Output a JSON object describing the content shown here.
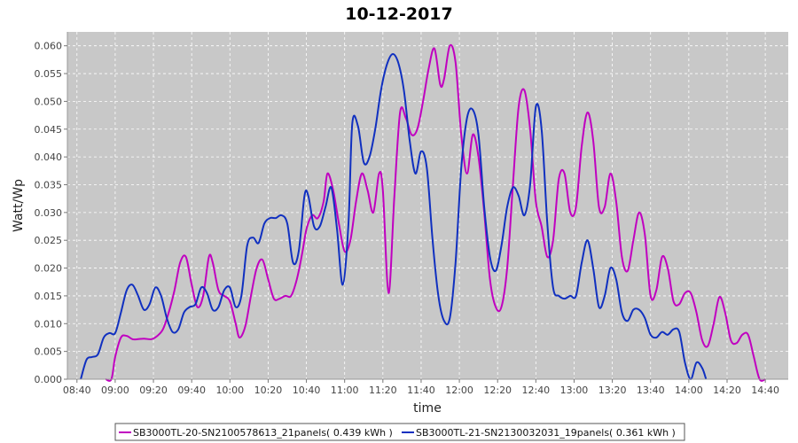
{
  "chart_data": {
    "type": "line",
    "title": "10-12-2017",
    "xlabel": "time",
    "ylabel": "Watt/Wp",
    "x_ticks": [
      "08:40",
      "09:00",
      "09:20",
      "09:40",
      "10:00",
      "10:20",
      "10:40",
      "11:00",
      "11:20",
      "11:40",
      "12:00",
      "12:20",
      "12:40",
      "13:00",
      "13:20",
      "13:40",
      "14:00",
      "14:20",
      "14:40"
    ],
    "y_ticks": [
      "0.000",
      "0.005",
      "0.010",
      "0.015",
      "0.020",
      "0.025",
      "0.030",
      "0.035",
      "0.040",
      "0.045",
      "0.050",
      "0.055",
      "0.060"
    ],
    "xlim": [
      "08:35",
      "14:52"
    ],
    "ylim": [
      0,
      0.0625
    ],
    "grid": true,
    "legend_position": "bottom",
    "series": [
      {
        "name": "SB3000TL-20-SN2100578613_21panels( 0.439 kWh )",
        "color": "#c000c0",
        "points": [
          [
            "08:55",
            0.0
          ],
          [
            "08:58",
            0.0
          ],
          [
            "09:00",
            0.004
          ],
          [
            "09:03",
            0.0075
          ],
          [
            "09:06",
            0.0078
          ],
          [
            "09:09",
            0.0072
          ],
          [
            "09:12",
            0.0072
          ],
          [
            "09:15",
            0.0073
          ],
          [
            "09:19",
            0.0072
          ],
          [
            "09:22",
            0.0078
          ],
          [
            "09:25",
            0.009
          ],
          [
            "09:28",
            0.012
          ],
          [
            "09:31",
            0.016
          ],
          [
            "09:34",
            0.021
          ],
          [
            "09:37",
            0.022
          ],
          [
            "09:40",
            0.017
          ],
          [
            "09:43",
            0.013
          ],
          [
            "09:46",
            0.015
          ],
          [
            "09:49",
            0.022
          ],
          [
            "09:51",
            0.021
          ],
          [
            "09:54",
            0.016
          ],
          [
            "09:57",
            0.015
          ],
          [
            "10:00",
            0.014
          ],
          [
            "10:03",
            0.01
          ],
          [
            "10:05",
            0.0075
          ],
          [
            "10:08",
            0.0095
          ],
          [
            "10:11",
            0.015
          ],
          [
            "10:14",
            0.02
          ],
          [
            "10:17",
            0.0215
          ],
          [
            "10:20",
            0.018
          ],
          [
            "10:23",
            0.0145
          ],
          [
            "10:26",
            0.0145
          ],
          [
            "10:29",
            0.015
          ],
          [
            "10:32",
            0.015
          ],
          [
            "10:35",
            0.018
          ],
          [
            "10:38",
            0.023
          ],
          [
            "10:40",
            0.027
          ],
          [
            "10:43",
            0.0295
          ],
          [
            "10:46",
            0.029
          ],
          [
            "10:49",
            0.032
          ],
          [
            "10:51",
            0.037
          ],
          [
            "10:54",
            0.034
          ],
          [
            "10:57",
            0.028
          ],
          [
            "11:00",
            0.023
          ],
          [
            "11:03",
            0.025
          ],
          [
            "11:06",
            0.032
          ],
          [
            "11:09",
            0.037
          ],
          [
            "11:12",
            0.034
          ],
          [
            "11:15",
            0.03
          ],
          [
            "11:18",
            0.037
          ],
          [
            "11:20",
            0.034
          ],
          [
            "11:23",
            0.0155
          ],
          [
            "11:26",
            0.033
          ],
          [
            "11:29",
            0.048
          ],
          [
            "11:32",
            0.047
          ],
          [
            "11:35",
            0.044
          ],
          [
            "11:38",
            0.045
          ],
          [
            "11:41",
            0.05
          ],
          [
            "11:44",
            0.056
          ],
          [
            "11:47",
            0.0595
          ],
          [
            "11:50",
            0.053
          ],
          [
            "11:52",
            0.054
          ],
          [
            "11:55",
            0.06
          ],
          [
            "11:58",
            0.057
          ],
          [
            "12:01",
            0.044
          ],
          [
            "12:04",
            0.037
          ],
          [
            "12:07",
            0.044
          ],
          [
            "12:10",
            0.04
          ],
          [
            "12:13",
            0.03
          ],
          [
            "12:16",
            0.018
          ],
          [
            "12:19",
            0.013
          ],
          [
            "12:22",
            0.013
          ],
          [
            "12:25",
            0.02
          ],
          [
            "12:28",
            0.035
          ],
          [
            "12:31",
            0.049
          ],
          [
            "12:34",
            0.052
          ],
          [
            "12:37",
            0.045
          ],
          [
            "12:40",
            0.032
          ],
          [
            "12:43",
            0.0275
          ],
          [
            "12:46",
            0.022
          ],
          [
            "12:49",
            0.025
          ],
          [
            "12:52",
            0.036
          ],
          [
            "12:55",
            0.037
          ],
          [
            "12:58",
            0.03
          ],
          [
            "13:01",
            0.031
          ],
          [
            "13:04",
            0.042
          ],
          [
            "13:07",
            0.048
          ],
          [
            "13:10",
            0.043
          ],
          [
            "13:13",
            0.031
          ],
          [
            "13:16",
            0.031
          ],
          [
            "13:19",
            0.037
          ],
          [
            "13:22",
            0.032
          ],
          [
            "13:25",
            0.022
          ],
          [
            "13:28",
            0.0195
          ],
          [
            "13:31",
            0.025
          ],
          [
            "13:34",
            0.03
          ],
          [
            "13:37",
            0.026
          ],
          [
            "13:40",
            0.015
          ],
          [
            "13:43",
            0.016
          ],
          [
            "13:46",
            0.022
          ],
          [
            "13:49",
            0.02
          ],
          [
            "13:52",
            0.014
          ],
          [
            "13:55",
            0.0135
          ],
          [
            "13:58",
            0.0155
          ],
          [
            "14:01",
            0.0155
          ],
          [
            "14:04",
            0.012
          ],
          [
            "14:07",
            0.007
          ],
          [
            "14:10",
            0.006
          ],
          [
            "14:13",
            0.01
          ],
          [
            "14:16",
            0.0148
          ],
          [
            "14:19",
            0.012
          ],
          [
            "14:22",
            0.007
          ],
          [
            "14:25",
            0.0065
          ],
          [
            "14:28",
            0.008
          ],
          [
            "14:31",
            0.008
          ],
          [
            "14:34",
            0.004
          ],
          [
            "14:37",
            0.0
          ],
          [
            "14:40",
            0.0
          ]
        ]
      },
      {
        "name": "SB3000TL-21-SN2130032031_19panels( 0.361 kWh )",
        "color": "#1030c0",
        "points": [
          [
            "08:42",
            0.0
          ],
          [
            "08:45",
            0.0035
          ],
          [
            "08:48",
            0.004
          ],
          [
            "08:51",
            0.0045
          ],
          [
            "08:54",
            0.0075
          ],
          [
            "08:57",
            0.0083
          ],
          [
            "09:00",
            0.0083
          ],
          [
            "09:03",
            0.012
          ],
          [
            "09:06",
            0.016
          ],
          [
            "09:09",
            0.017
          ],
          [
            "09:12",
            0.015
          ],
          [
            "09:15",
            0.0125
          ],
          [
            "09:18",
            0.0135
          ],
          [
            "09:21",
            0.0165
          ],
          [
            "09:24",
            0.015
          ],
          [
            "09:27",
            0.011
          ],
          [
            "09:30",
            0.0085
          ],
          [
            "09:33",
            0.009
          ],
          [
            "09:36",
            0.012
          ],
          [
            "09:39",
            0.013
          ],
          [
            "09:42",
            0.0135
          ],
          [
            "09:45",
            0.0165
          ],
          [
            "09:48",
            0.0155
          ],
          [
            "09:51",
            0.0125
          ],
          [
            "09:54",
            0.013
          ],
          [
            "09:57",
            0.016
          ],
          [
            "10:00",
            0.0165
          ],
          [
            "10:03",
            0.013
          ],
          [
            "10:06",
            0.015
          ],
          [
            "10:09",
            0.024
          ],
          [
            "10:12",
            0.0255
          ],
          [
            "10:15",
            0.0245
          ],
          [
            "10:18",
            0.028
          ],
          [
            "10:21",
            0.029
          ],
          [
            "10:24",
            0.029
          ],
          [
            "10:27",
            0.0295
          ],
          [
            "10:30",
            0.028
          ],
          [
            "10:33",
            0.021
          ],
          [
            "10:36",
            0.023
          ],
          [
            "10:39",
            0.033
          ],
          [
            "10:41",
            0.033
          ],
          [
            "10:44",
            0.0275
          ],
          [
            "10:47",
            0.0275
          ],
          [
            "10:50",
            0.031
          ],
          [
            "10:53",
            0.0345
          ],
          [
            "10:56",
            0.027
          ],
          [
            "10:59",
            0.017
          ],
          [
            "11:02",
            0.028
          ],
          [
            "11:04",
            0.046
          ],
          [
            "11:07",
            0.0455
          ],
          [
            "11:10",
            0.039
          ],
          [
            "11:13",
            0.04
          ],
          [
            "11:16",
            0.045
          ],
          [
            "11:19",
            0.052
          ],
          [
            "11:22",
            0.0565
          ],
          [
            "11:25",
            0.0585
          ],
          [
            "11:28",
            0.057
          ],
          [
            "11:31",
            0.052
          ],
          [
            "11:34",
            0.043
          ],
          [
            "11:37",
            0.037
          ],
          [
            "11:40",
            0.041
          ],
          [
            "11:43",
            0.038
          ],
          [
            "11:46",
            0.025
          ],
          [
            "11:49",
            0.015
          ],
          [
            "11:52",
            0.0105
          ],
          [
            "11:55",
            0.011
          ],
          [
            "11:58",
            0.021
          ],
          [
            "12:01",
            0.038
          ],
          [
            "12:04",
            0.047
          ],
          [
            "12:07",
            0.0485
          ],
          [
            "12:10",
            0.044
          ],
          [
            "12:13",
            0.031
          ],
          [
            "12:16",
            0.022
          ],
          [
            "12:19",
            0.0195
          ],
          [
            "12:22",
            0.024
          ],
          [
            "12:25",
            0.031
          ],
          [
            "12:28",
            0.0345
          ],
          [
            "12:31",
            0.033
          ],
          [
            "12:34",
            0.0295
          ],
          [
            "12:37",
            0.035
          ],
          [
            "12:40",
            0.049
          ],
          [
            "12:43",
            0.045
          ],
          [
            "12:46",
            0.028
          ],
          [
            "12:49",
            0.0165
          ],
          [
            "12:52",
            0.015
          ],
          [
            "12:55",
            0.0145
          ],
          [
            "12:58",
            0.015
          ],
          [
            "13:01",
            0.015
          ],
          [
            "13:04",
            0.021
          ],
          [
            "13:07",
            0.025
          ],
          [
            "13:10",
            0.02
          ],
          [
            "13:13",
            0.013
          ],
          [
            "13:16",
            0.015
          ],
          [
            "13:19",
            0.02
          ],
          [
            "13:22",
            0.018
          ],
          [
            "13:25",
            0.012
          ],
          [
            "13:28",
            0.0105
          ],
          [
            "13:31",
            0.0125
          ],
          [
            "13:34",
            0.0125
          ],
          [
            "13:37",
            0.011
          ],
          [
            "13:40",
            0.008
          ],
          [
            "13:43",
            0.0075
          ],
          [
            "13:46",
            0.0085
          ],
          [
            "13:49",
            0.008
          ],
          [
            "13:52",
            0.009
          ],
          [
            "13:55",
            0.0085
          ],
          [
            "13:58",
            0.003
          ],
          [
            "14:01",
            0.0
          ],
          [
            "14:04",
            0.003
          ],
          [
            "14:07",
            0.002
          ],
          [
            "14:09",
            0.0
          ]
        ]
      }
    ]
  }
}
